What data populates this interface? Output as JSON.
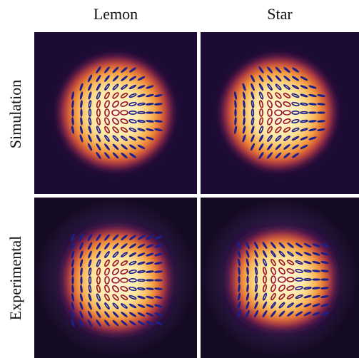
{
  "columns": [
    "Lemon",
    "Star"
  ],
  "rows": [
    "Simulation",
    "Experimental"
  ]
}
